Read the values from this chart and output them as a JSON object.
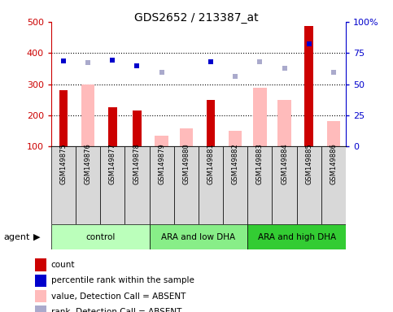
{
  "title": "GDS2652 / 213387_at",
  "samples": [
    "GSM149875",
    "GSM149876",
    "GSM149877",
    "GSM149878",
    "GSM149879",
    "GSM149880",
    "GSM149881",
    "GSM149882",
    "GSM149883",
    "GSM149884",
    "GSM149885",
    "GSM149886"
  ],
  "groups": [
    {
      "label": "control",
      "start": 0,
      "end": 4,
      "color": "#bbffbb"
    },
    {
      "label": "ARA and low DHA",
      "start": 4,
      "end": 8,
      "color": "#88ee88"
    },
    {
      "label": "ARA and high DHA",
      "start": 8,
      "end": 12,
      "color": "#33cc33"
    }
  ],
  "count_values": [
    280,
    null,
    225,
    215,
    null,
    null,
    250,
    null,
    null,
    null,
    487,
    null
  ],
  "count_color": "#cc0000",
  "absent_value_values": [
    null,
    300,
    null,
    null,
    135,
    158,
    null,
    150,
    290,
    250,
    null,
    183
  ],
  "absent_value_color": "#ffbbbb",
  "percentile_rank_values": [
    375,
    null,
    378,
    360,
    null,
    null,
    373,
    null,
    null,
    null,
    430,
    null
  ],
  "percentile_rank_color": "#0000cc",
  "absent_rank_values": [
    null,
    370,
    null,
    null,
    338,
    null,
    null,
    325,
    373,
    350,
    null,
    338
  ],
  "absent_rank_color": "#aaaacc",
  "ylim_left": [
    100,
    500
  ],
  "ylim_right": [
    0,
    100
  ],
  "yticks_left": [
    100,
    200,
    300,
    400,
    500
  ],
  "yticks_right": [
    0,
    25,
    50,
    75,
    100
  ],
  "bar_width": 0.55,
  "count_bar_width": 0.35,
  "legend_items": [
    {
      "label": "count",
      "color": "#cc0000"
    },
    {
      "label": "percentile rank within the sample",
      "color": "#0000cc"
    },
    {
      "label": "value, Detection Call = ABSENT",
      "color": "#ffbbbb"
    },
    {
      "label": "rank, Detection Call = ABSENT",
      "color": "#aaaacc"
    }
  ]
}
